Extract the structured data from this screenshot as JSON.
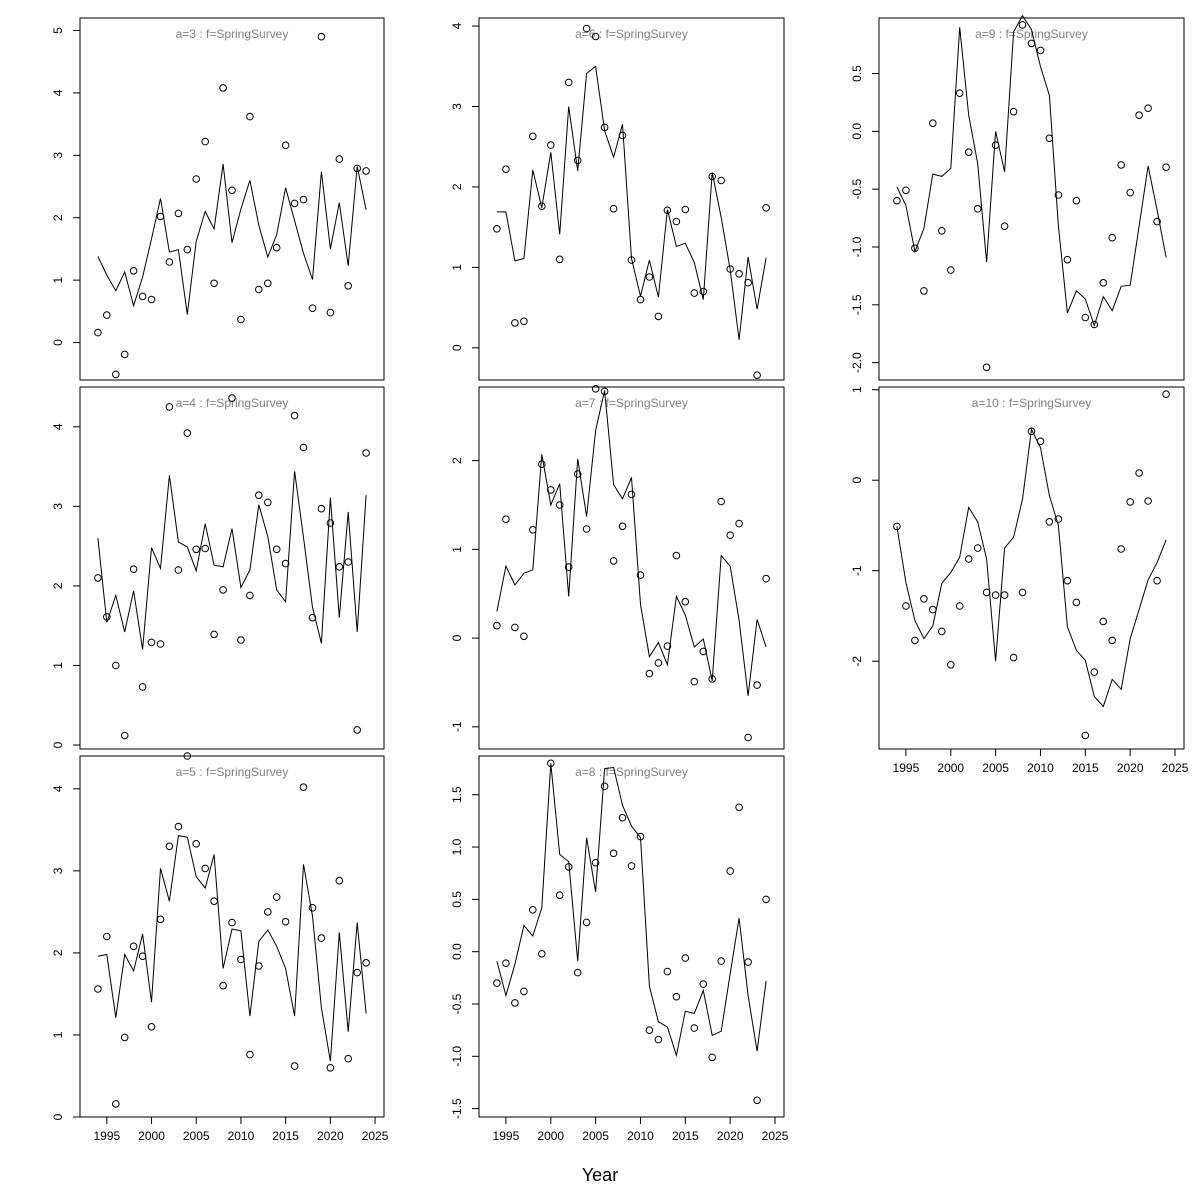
{
  "chart_data": {
    "type": "line",
    "xlabel": "Year",
    "xlim": [
      1992,
      2026
    ],
    "x_ticks": [
      1995,
      2000,
      2005,
      2010,
      2015,
      2020,
      2025
    ],
    "years": [
      1994,
      1995,
      1996,
      1997,
      1998,
      1999,
      2000,
      2001,
      2002,
      2003,
      2004,
      2005,
      2006,
      2007,
      2008,
      2009,
      2010,
      2011,
      2012,
      2013,
      2014,
      2015,
      2016,
      2017,
      2018,
      2019,
      2020,
      2021,
      2022,
      2023,
      2024
    ],
    "panels": [
      {
        "title": "a=3  :  f=SpringSurvey",
        "ylim": [
          -0.6,
          5.2
        ],
        "y_ticks": [
          0,
          1,
          2,
          3,
          4,
          5
        ],
        "observed": [
          0.16,
          0.44,
          -0.51,
          -0.19,
          1.15,
          0.74,
          0.69,
          2.02,
          1.29,
          2.07,
          1.49,
          2.62,
          3.22,
          0.95,
          4.08,
          2.44,
          0.37,
          3.62,
          0.85,
          0.95,
          1.52,
          3.16,
          2.23,
          2.29,
          0.55,
          4.9,
          0.48,
          2.94,
          0.91,
          2.79,
          2.75
        ],
        "fitted": [
          1.38,
          1.08,
          0.83,
          1.13,
          0.59,
          1.05,
          1.66,
          2.31,
          1.45,
          1.49,
          0.45,
          1.62,
          2.1,
          1.82,
          2.86,
          1.6,
          2.14,
          2.6,
          1.88,
          1.37,
          1.73,
          2.48,
          1.95,
          1.43,
          1.01,
          2.74,
          1.5,
          2.24,
          1.23,
          2.82,
          2.13
        ]
      },
      {
        "title": "a=6  :  f=SpringSurvey",
        "ylim": [
          -0.4,
          4.1
        ],
        "y_ticks": [
          0,
          1,
          2,
          3,
          4
        ],
        "observed": [
          1.48,
          2.22,
          0.31,
          0.33,
          2.63,
          1.76,
          2.52,
          1.1,
          3.3,
          2.33,
          3.97,
          3.87,
          2.74,
          1.73,
          2.64,
          1.09,
          0.6,
          0.88,
          0.39,
          1.71,
          1.57,
          1.72,
          0.68,
          0.7,
          2.13,
          2.08,
          0.98,
          0.92,
          0.81,
          -0.34,
          1.74
        ],
        "fitted": [
          1.69,
          1.69,
          1.08,
          1.11,
          2.21,
          1.74,
          2.43,
          1.41,
          3.0,
          2.2,
          3.41,
          3.5,
          2.7,
          2.37,
          2.78,
          1.11,
          0.64,
          1.09,
          0.63,
          1.72,
          1.26,
          1.3,
          1.06,
          0.6,
          2.18,
          1.62,
          0.97,
          0.1,
          1.13,
          0.48,
          1.12
        ]
      },
      {
        "title": "a=9  :  f=SpringSurvey",
        "ylim": [
          -2.15,
          0.98
        ],
        "y_ticks": [
          -2.0,
          -1.5,
          -1.0,
          -0.5,
          0.0,
          0.5
        ],
        "observed": [
          -0.6,
          -0.51,
          -1.01,
          -1.38,
          0.07,
          -0.86,
          -1.2,
          0.33,
          -0.18,
          -0.67,
          -2.04,
          -0.12,
          -0.82,
          0.17,
          0.92,
          0.76,
          0.7,
          -0.06,
          -0.55,
          -1.11,
          -0.6,
          -1.61,
          -1.67,
          -1.31,
          -0.92,
          -0.29,
          -0.53,
          0.14,
          0.2,
          -0.78,
          -0.31
        ],
        "fitted": [
          -0.48,
          -0.64,
          -1.04,
          -0.84,
          -0.37,
          -0.39,
          -0.32,
          0.9,
          0.14,
          -0.28,
          -1.13,
          0.0,
          -0.35,
          0.86,
          1.0,
          0.88,
          0.56,
          0.31,
          -0.82,
          -1.57,
          -1.38,
          -1.45,
          -1.68,
          -1.43,
          -1.55,
          -1.34,
          -1.33,
          -0.82,
          -0.3,
          -0.68,
          -1.09
        ]
      },
      {
        "title": "a=4  :  f=SpringSurvey",
        "ylim": [
          -0.05,
          4.5
        ],
        "y_ticks": [
          0,
          1,
          2,
          3,
          4
        ],
        "observed": [
          2.1,
          1.61,
          1.0,
          0.12,
          2.21,
          0.73,
          1.29,
          1.27,
          4.25,
          2.2,
          3.92,
          2.46,
          2.47,
          1.39,
          1.95,
          4.36,
          1.32,
          1.88,
          3.14,
          3.05,
          2.46,
          2.28,
          4.14,
          3.74,
          1.6,
          2.97,
          2.79,
          2.24,
          2.3,
          0.19,
          3.67
        ],
        "fitted": [
          2.6,
          1.54,
          1.88,
          1.42,
          1.94,
          1.2,
          2.48,
          2.22,
          3.39,
          2.55,
          2.49,
          2.19,
          2.78,
          2.26,
          2.24,
          2.72,
          1.98,
          2.2,
          3.02,
          2.62,
          1.95,
          1.8,
          3.44,
          2.61,
          1.73,
          1.28,
          3.11,
          1.6,
          2.93,
          1.42,
          3.14
        ]
      },
      {
        "title": "a=7  :  f=SpringSurvey",
        "ylim": [
          -1.25,
          2.83
        ],
        "y_ticks": [
          -1,
          0,
          1,
          2
        ],
        "observed": [
          0.14,
          1.34,
          0.12,
          0.02,
          1.22,
          1.96,
          1.67,
          1.5,
          0.8,
          1.85,
          1.23,
          2.81,
          2.78,
          0.87,
          1.26,
          1.62,
          0.71,
          -0.4,
          -0.28,
          -0.09,
          0.93,
          0.41,
          -0.49,
          -0.15,
          -0.46,
          1.54,
          1.16,
          1.29,
          -1.12,
          -0.53,
          0.67
        ],
        "fitted": [
          0.3,
          0.81,
          0.6,
          0.73,
          0.77,
          2.07,
          1.5,
          1.74,
          0.47,
          2.02,
          1.37,
          2.34,
          2.79,
          1.73,
          1.57,
          1.81,
          0.38,
          -0.21,
          -0.05,
          -0.3,
          0.47,
          0.26,
          -0.1,
          -0.01,
          -0.48,
          0.93,
          0.81,
          0.2,
          -0.65,
          0.21,
          -0.1
        ]
      },
      {
        "title": "a=10  :  f=SpringSurvey",
        "ylim": [
          -2.97,
          1.03
        ],
        "y_ticks": [
          -2,
          -1,
          0,
          1
        ],
        "observed": [
          -0.51,
          -1.39,
          -1.77,
          -1.31,
          -1.43,
          -1.67,
          -2.04,
          -1.39,
          -0.87,
          -0.75,
          -1.24,
          -1.27,
          -1.27,
          -1.96,
          -1.24,
          0.54,
          0.43,
          -0.46,
          -0.43,
          -1.11,
          -1.35,
          -2.82,
          -2.12,
          -1.56,
          -1.77,
          -0.76,
          -0.24,
          0.08,
          -0.23,
          -1.11,
          0.95
        ],
        "fitted": [
          -0.51,
          -1.13,
          -1.55,
          -1.75,
          -1.61,
          -1.14,
          -1.02,
          -0.85,
          -0.3,
          -0.46,
          -0.87,
          -2.0,
          -0.75,
          -0.63,
          -0.21,
          0.56,
          0.36,
          -0.17,
          -0.5,
          -1.62,
          -1.88,
          -1.99,
          -2.39,
          -2.5,
          -2.2,
          -2.31,
          -1.75,
          -1.43,
          -1.1,
          -0.91,
          -0.66
        ]
      },
      {
        "title": "a=5  :  f=SpringSurvey",
        "ylim": [
          0,
          4.4
        ],
        "y_ticks": [
          0,
          1,
          2,
          3,
          4
        ],
        "observed": [
          1.56,
          2.2,
          0.16,
          0.97,
          2.08,
          1.96,
          1.1,
          2.41,
          3.3,
          3.54,
          4.4,
          3.33,
          3.03,
          2.63,
          1.6,
          2.37,
          1.92,
          0.76,
          1.84,
          2.5,
          2.68,
          2.38,
          0.62,
          4.02,
          2.55,
          2.18,
          0.6,
          2.88,
          0.71,
          1.76,
          1.88
        ],
        "fitted": [
          1.96,
          1.98,
          1.21,
          1.98,
          1.78,
          2.23,
          1.4,
          3.03,
          2.63,
          3.43,
          3.41,
          2.93,
          2.79,
          3.2,
          1.81,
          2.29,
          2.27,
          1.23,
          2.14,
          2.28,
          2.08,
          1.81,
          1.23,
          3.08,
          2.45,
          1.33,
          0.68,
          2.25,
          1.04,
          2.37,
          1.26
        ]
      },
      {
        "title": "a=8  :  f=SpringSurvey",
        "ylim": [
          -1.58,
          1.87
        ],
        "y_ticks": [
          -1.5,
          -1.0,
          -0.5,
          0.0,
          0.5,
          1.0,
          1.5
        ],
        "observed": [
          -0.3,
          -0.11,
          -0.49,
          -0.38,
          0.4,
          -0.02,
          1.8,
          0.54,
          0.81,
          -0.2,
          0.28,
          0.85,
          1.58,
          0.94,
          1.28,
          0.82,
          1.1,
          -0.75,
          -0.84,
          -0.19,
          -0.43,
          -0.06,
          -0.73,
          -0.31,
          -1.01,
          -0.09,
          0.77,
          1.38,
          -0.1,
          -1.42,
          0.5
        ],
        "fitted": [
          -0.09,
          -0.42,
          -0.12,
          0.25,
          0.15,
          0.42,
          1.8,
          0.93,
          0.86,
          -0.09,
          1.09,
          0.57,
          1.75,
          1.76,
          1.4,
          1.2,
          1.09,
          -0.33,
          -0.67,
          -0.72,
          -0.99,
          -0.57,
          -0.59,
          -0.37,
          -0.8,
          -0.76,
          -0.21,
          0.32,
          -0.42,
          -0.95,
          -0.28
        ]
      }
    ]
  }
}
